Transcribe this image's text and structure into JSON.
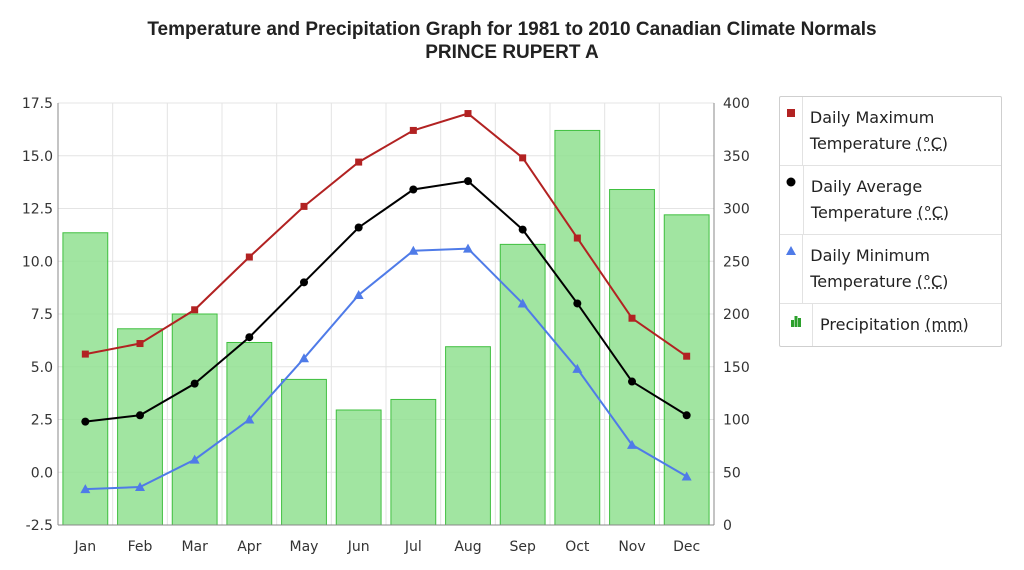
{
  "title_line1": "Temperature and Precipitation Graph for 1981 to 2010 Canadian Climate Normals",
  "title_line2": "PRINCE RUPERT A",
  "legend": [
    {
      "text": "Daily Maximum Temperature",
      "unit": "(°C)",
      "color": "#b22222",
      "marker": "square"
    },
    {
      "text": "Daily Average Temperature",
      "unit": "(°C)",
      "color": "#000000",
      "marker": "circle"
    },
    {
      "text": "Daily Minimum Temperature",
      "unit": "(°C)",
      "color": "#4f7be8",
      "marker": "triangle"
    },
    {
      "text": "Precipitation",
      "unit": "(mm)",
      "color": "#2ca02c",
      "marker": "bar"
    }
  ],
  "chart_data": {
    "type": "bar+line",
    "categories": [
      "Jan",
      "Feb",
      "Mar",
      "Apr",
      "May",
      "Jun",
      "Jul",
      "Aug",
      "Sep",
      "Oct",
      "Nov",
      "Dec"
    ],
    "left_axis": {
      "min": -2.5,
      "max": 17.5,
      "ticks": [
        "-2.5",
        "0.0",
        "2.5",
        "5.0",
        "7.5",
        "10.0",
        "12.5",
        "15.0",
        "17.5"
      ]
    },
    "right_axis": {
      "min": 0,
      "max": 400,
      "ticks": [
        "0",
        "50",
        "100",
        "150",
        "200",
        "250",
        "300",
        "350",
        "400"
      ]
    },
    "grid": true,
    "legend_position": "right",
    "series": [
      {
        "name": "Daily Maximum Temperature (°C)",
        "type": "line",
        "axis": "left",
        "color": "#b22222",
        "marker": "square",
        "values": [
          5.6,
          6.1,
          7.7,
          10.2,
          12.6,
          14.7,
          16.2,
          17.0,
          14.9,
          11.1,
          7.3,
          5.5
        ]
      },
      {
        "name": "Daily Average Temperature (°C)",
        "type": "line",
        "axis": "left",
        "color": "#000000",
        "marker": "circle",
        "values": [
          2.4,
          2.7,
          4.2,
          6.4,
          9.0,
          11.6,
          13.4,
          13.8,
          11.5,
          8.0,
          4.3,
          2.7
        ]
      },
      {
        "name": "Daily Minimum Temperature (°C)",
        "type": "line",
        "axis": "left",
        "color": "#4f7be8",
        "marker": "triangle",
        "values": [
          -0.8,
          -0.7,
          0.6,
          2.5,
          5.4,
          8.4,
          10.5,
          10.6,
          8.0,
          4.9,
          1.3,
          -0.2
        ]
      },
      {
        "name": "Precipitation (mm)",
        "type": "bar",
        "axis": "right",
        "color": "#90e090",
        "values": [
          277,
          186,
          200,
          173,
          138,
          109,
          119,
          169,
          266,
          374,
          318,
          294
        ]
      }
    ]
  }
}
